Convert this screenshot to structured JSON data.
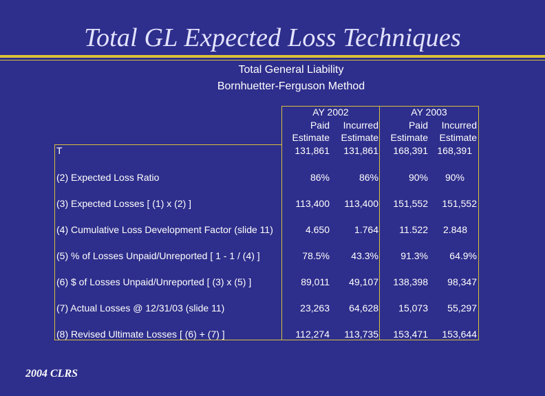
{
  "slide": {
    "title": "Total GL Expected Loss Techniques",
    "footer": "2004 CLRS"
  },
  "table": {
    "heading_line1": "Total General Liability",
    "heading_line2": "Bornhuetter-Ferguson Method",
    "ay_headers": [
      "AY 2002",
      "AY 2003"
    ],
    "col_type": [
      "Paid",
      "Incurred",
      "Paid",
      "Incurred"
    ],
    "col_kind": [
      "Estimate",
      "Estimate",
      "Estimate",
      "Estimate"
    ],
    "rows": [
      {
        "label": "T",
        "values": [
          "131,861",
          "131,861",
          "168,391",
          "168,391"
        ]
      },
      {
        "label": "(2) Expected Loss Ratio",
        "values": [
          "86%",
          "86%",
          "90%",
          "90%"
        ]
      },
      {
        "label": "(3) Expected Losses [ (1) x (2) ]",
        "values": [
          "113,400",
          "113,400",
          "151,552",
          "151,552"
        ]
      },
      {
        "label": "(4) Cumulative Loss Development Factor (slide 11)",
        "values": [
          "4.650",
          "1.764",
          "11.522",
          "2.848"
        ]
      },
      {
        "label": "(5) % of Losses Unpaid/Unreported [ 1 - 1 / (4) ]",
        "values": [
          "78.5%",
          "43.3%",
          "91.3%",
          "64.9%"
        ]
      },
      {
        "label": "(6) $ of Losses Unpaid/Unreported [ (3) x (5) ]",
        "values": [
          "89,011",
          "49,107",
          "138,398",
          "98,347"
        ]
      },
      {
        "label": "(7) Actual Losses @ 12/31/03 (slide 11)",
        "values": [
          "23,263",
          "64,628",
          "15,073",
          "55,297"
        ]
      },
      {
        "label": "(8) Revised Ultimate Losses [ (6) + (7) ]",
        "values": [
          "112,274",
          "113,735",
          "153,471",
          "153,644"
        ]
      }
    ]
  }
}
